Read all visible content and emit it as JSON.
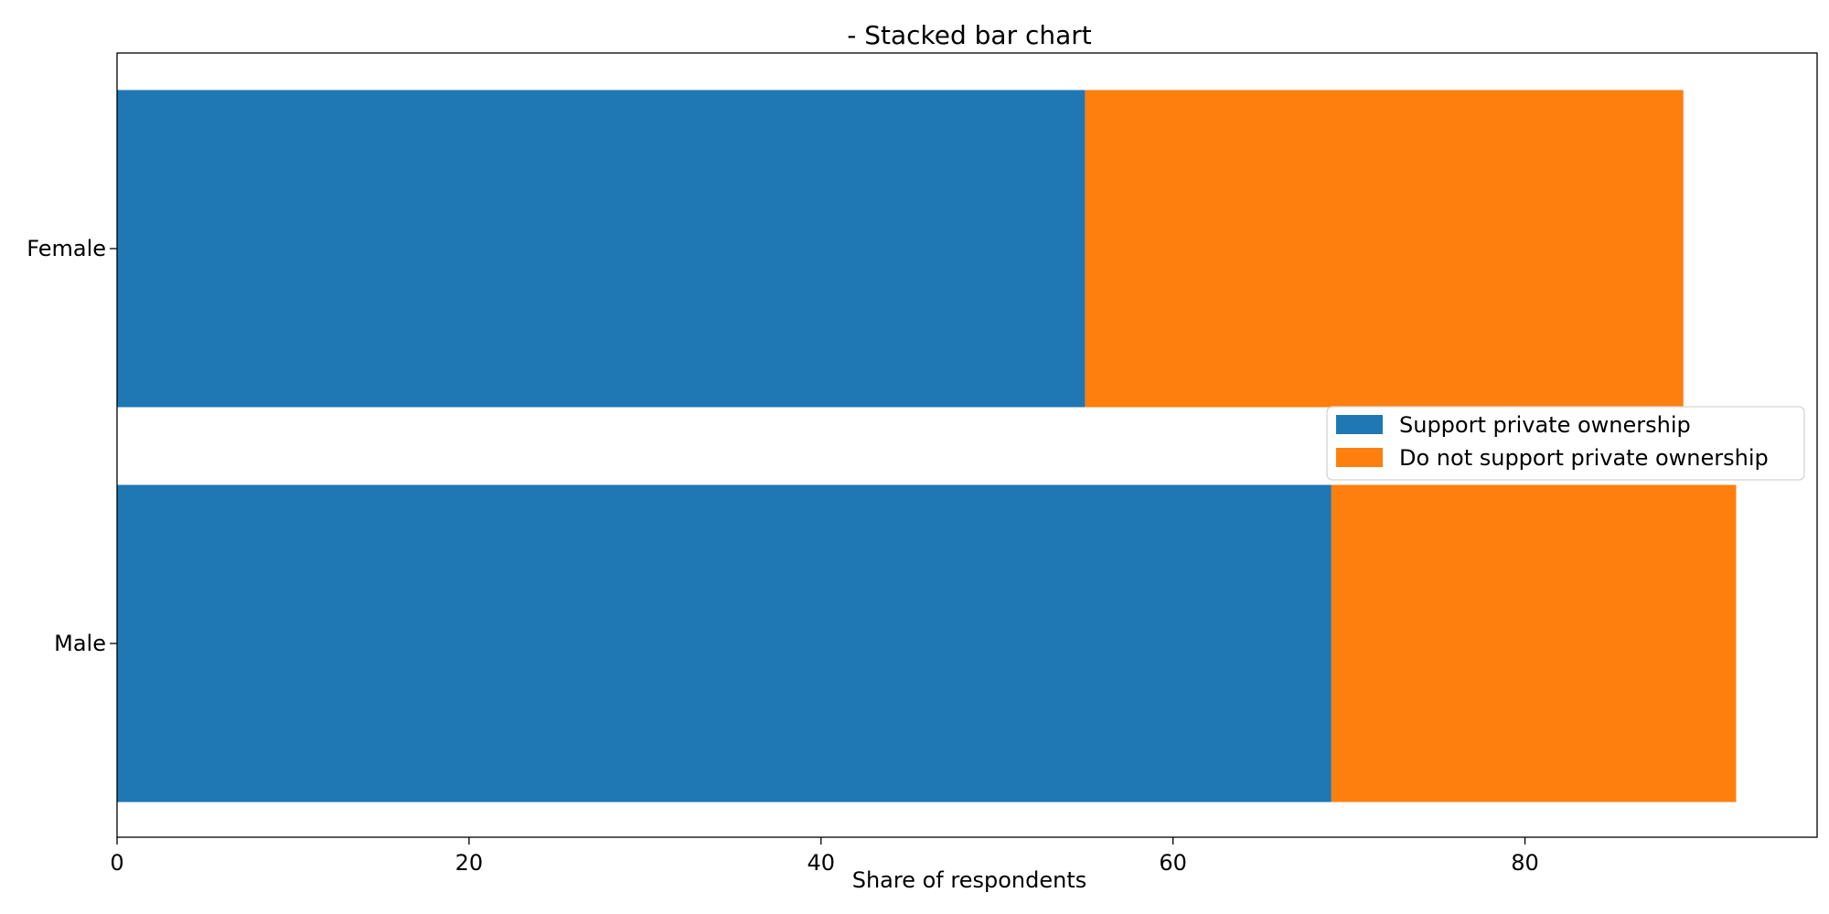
{
  "chart_data": {
    "type": "bar",
    "orientation": "horizontal",
    "stacked": true,
    "title": "- Stacked bar chart",
    "xlabel": "Share of respondents",
    "ylabel": "",
    "categories": [
      "Male",
      "Female"
    ],
    "series": [
      {
        "name": "Support private ownership",
        "values": [
          69,
          55
        ],
        "color": "#1f77b4"
      },
      {
        "name": "Do not support private ownership",
        "values": [
          23,
          34
        ],
        "color": "#ff7f0e"
      }
    ],
    "xlim": [
      0,
      96.6
    ],
    "xticks": [
      0,
      20,
      40,
      60,
      80
    ],
    "grid": false,
    "legend_position": "center-right"
  }
}
